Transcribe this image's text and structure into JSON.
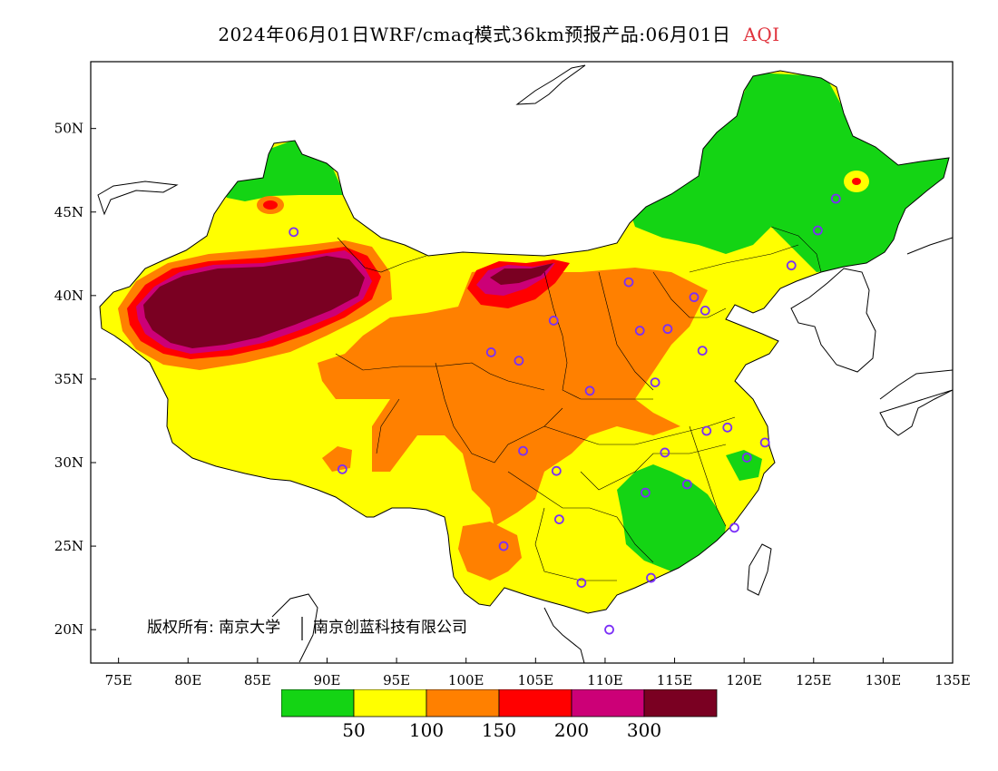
{
  "title": {
    "main": "2024年06月01日WRF/cmaq模式36km预报产品:06月01日",
    "variable": "AQI",
    "variable_color": "#e0323c"
  },
  "axes": {
    "x_ticks": [
      "75E",
      "80E",
      "85E",
      "90E",
      "95E",
      "100E",
      "105E",
      "110E",
      "115E",
      "120E",
      "125E",
      "130E",
      "135E"
    ],
    "y_ticks": [
      "50N",
      "45N",
      "40N",
      "35N",
      "30N",
      "25N",
      "20N"
    ],
    "lon_range": [
      73,
      135
    ],
    "lat_range": [
      18,
      54
    ]
  },
  "copyright": {
    "left": "版权所有: 南京大学",
    "right": "南京创蓝科技有限公司"
  },
  "legend": {
    "colors": [
      "#14d414",
      "#ffff00",
      "#ff8000",
      "#ff0000",
      "#cc0077",
      "#7a0022"
    ],
    "labels": [
      "50",
      "100",
      "150",
      "200",
      "300"
    ]
  },
  "stations": {
    "marker_color": "#7b2ff7",
    "points": [
      [
        87.6,
        43.8
      ],
      [
        126.6,
        45.8
      ],
      [
        125.3,
        43.9
      ],
      [
        123.4,
        41.8
      ],
      [
        111.7,
        40.8
      ],
      [
        116.4,
        39.9
      ],
      [
        117.2,
        39.1
      ],
      [
        114.5,
        38.0
      ],
      [
        112.5,
        37.9
      ],
      [
        106.3,
        38.5
      ],
      [
        101.8,
        36.6
      ],
      [
        103.8,
        36.1
      ],
      [
        108.9,
        34.3
      ],
      [
        113.6,
        34.8
      ],
      [
        117.0,
        36.7
      ],
      [
        118.8,
        32.1
      ],
      [
        117.3,
        31.9
      ],
      [
        121.5,
        31.2
      ],
      [
        120.2,
        30.3
      ],
      [
        104.1,
        30.7
      ],
      [
        106.5,
        29.5
      ],
      [
        114.3,
        30.6
      ],
      [
        112.9,
        28.2
      ],
      [
        115.9,
        28.7
      ],
      [
        119.3,
        26.1
      ],
      [
        106.7,
        26.6
      ],
      [
        102.7,
        25.0
      ],
      [
        113.3,
        23.1
      ],
      [
        108.3,
        22.8
      ],
      [
        110.3,
        20.0
      ],
      [
        91.1,
        29.6
      ]
    ]
  }
}
